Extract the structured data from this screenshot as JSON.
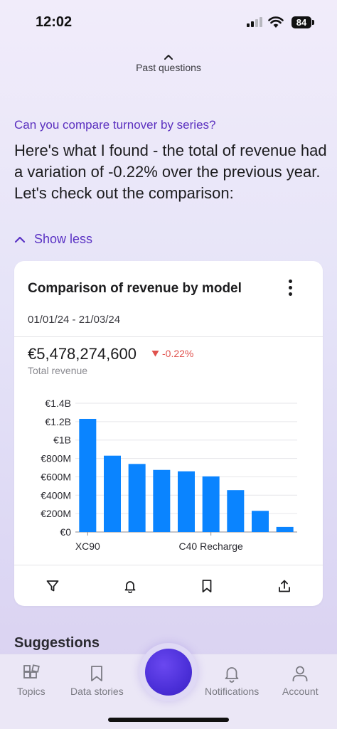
{
  "status_bar": {
    "time": "12:02",
    "battery": "84"
  },
  "past_questions": {
    "label": "Past questions"
  },
  "conversation": {
    "question": "Can you compare turnover by series?",
    "answer": "Here's what I found - the total of revenue had a variation of -0.22% over the previous year. Let's check out the comparison:",
    "show_less_label": "Show less"
  },
  "card": {
    "title": "Comparison of revenue by model",
    "date_range": "01/01/24 - 21/03/24",
    "total_value": "€5,478,274,600",
    "delta": "-0.22%",
    "total_label": "Total revenue"
  },
  "chart_data": {
    "type": "bar",
    "categories": [
      "XC90",
      "",
      "",
      "",
      "",
      "C40 Recharge",
      "",
      "",
      ""
    ],
    "values": [
      1230000000,
      830000000,
      740000000,
      675000000,
      660000000,
      605000000,
      455000000,
      230000000,
      55000000
    ],
    "y_ticks": [
      "€0",
      "€200M",
      "€400M",
      "€600M",
      "€800M",
      "€1B",
      "€1.2B",
      "€1.4B"
    ],
    "ylim": [
      0,
      1400000000
    ],
    "grid": true,
    "bar_color": "#0a84ff"
  },
  "card_actions": [
    "filter-icon",
    "bell-icon",
    "bookmark-icon",
    "share-icon"
  ],
  "suggestions": {
    "title": "Suggestions"
  },
  "tab_bar": {
    "topics": "Topics",
    "data_stories": "Data stories",
    "notifications": "Notifications",
    "account": "Account"
  },
  "colors": {
    "accent": "#5a32c4",
    "negative": "#e0524e",
    "bar": "#0a84ff"
  }
}
